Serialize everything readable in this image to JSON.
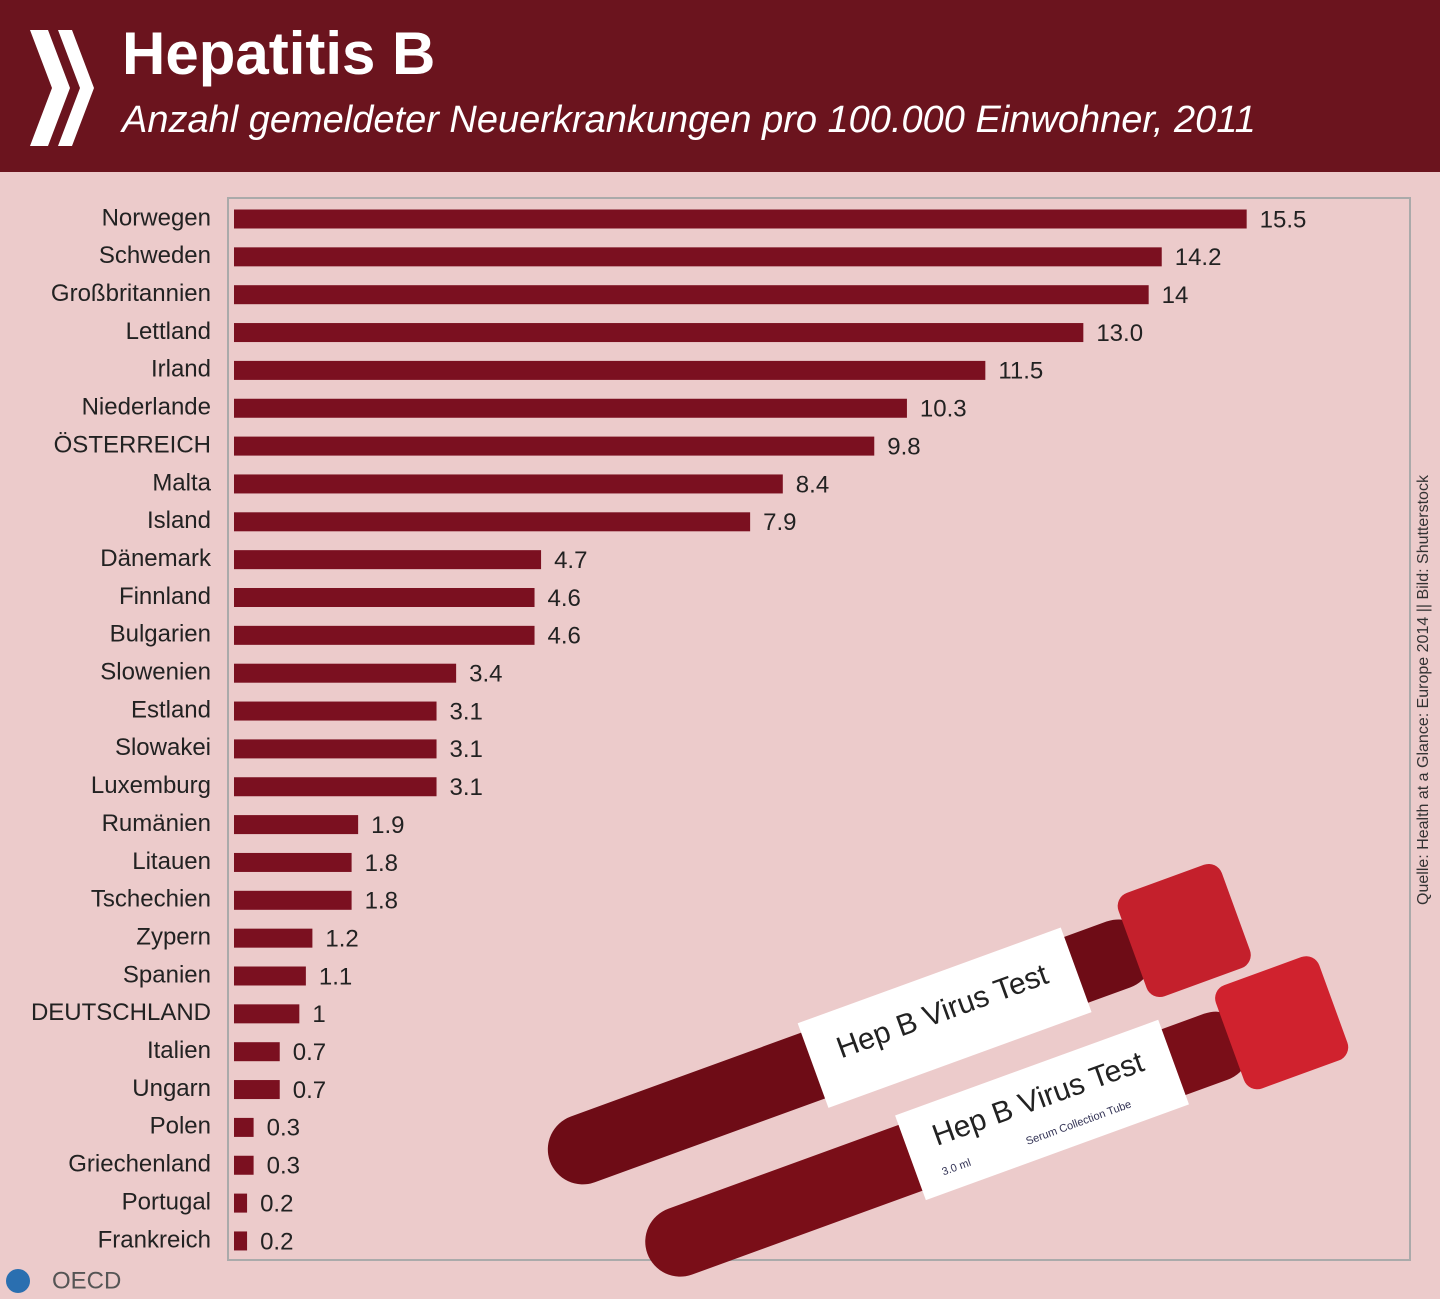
{
  "chart_data": {
    "type": "bar",
    "orientation": "horizontal",
    "title": "Hepatitis B",
    "subtitle": "Anzahl gemeldeter Neuerkrankungen pro 100.000 Einwohner, 2011",
    "categories": [
      "Norwegen",
      "Schweden",
      "Großbritannien",
      "Lettland",
      "Irland",
      "Niederlande",
      "ÖSTERREICH",
      "Malta",
      "Island",
      "Dänemark",
      "Finnland",
      "Bulgarien",
      "Slowenien",
      "Estland",
      "Slowakei",
      "Luxemburg",
      "Rumänien",
      "Litauen",
      "Tschechien",
      "Zypern",
      "Spanien",
      "DEUTSCHLAND",
      "Italien",
      "Ungarn",
      "Polen",
      "Griechenland",
      "Portugal",
      "Frankreich"
    ],
    "values": [
      15.5,
      14.2,
      14,
      13.0,
      11.5,
      10.3,
      9.8,
      8.4,
      7.9,
      4.7,
      4.6,
      4.6,
      3.4,
      3.1,
      3.1,
      3.1,
      1.9,
      1.8,
      1.8,
      1.2,
      1.1,
      1,
      0.7,
      0.7,
      0.3,
      0.3,
      0.2,
      0.2
    ],
    "value_labels": [
      "15.5",
      "14.2",
      "14",
      "13.0",
      "11.5",
      "10.3",
      "9.8",
      "8.4",
      "7.9",
      "4.7",
      "4.6",
      "4.6",
      "3.4",
      "3.1",
      "3.1",
      "3.1",
      "1.9",
      "1.8",
      "1.8",
      "1.2",
      "1.1",
      "1",
      "0.7",
      "0.7",
      "0.3",
      "0.3",
      "0.2",
      "0.2"
    ],
    "color": "#7b1020",
    "xlim": [
      0,
      18
    ],
    "source": "Quelle: Health at a Glance: Europe 2014 || Bild: Shutterstock",
    "logo": "OECD",
    "illustration_labels": [
      "Hep B Virus Test",
      "Hep B Virus Test"
    ],
    "illustration_small_text": [
      "Serum Collection Tube",
      "3.0 ml"
    ]
  }
}
